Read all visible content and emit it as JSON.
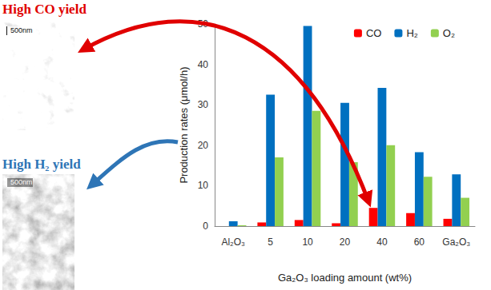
{
  "chart_data": {
    "type": "bar",
    "categories": [
      "Al₂O₃",
      "5",
      "10",
      "20",
      "40",
      "60",
      "Ga₂O₃"
    ],
    "x_label": "Ga₂O₃ loading amount (wt%)",
    "y_label": "Production rates (μmol/h)",
    "series": [
      {
        "name": "CO",
        "color": "#ff0000",
        "values": [
          0,
          0.9,
          1.5,
          0.7,
          4.5,
          3.2,
          1.8
        ]
      },
      {
        "name": "H₂",
        "color": "#0070c0",
        "values": [
          1.2,
          32.5,
          49.5,
          30.5,
          34.2,
          18.3,
          12.8
        ]
      },
      {
        "name": "O₂",
        "color": "#92d050",
        "values": [
          0.2,
          17,
          28.5,
          15.8,
          20,
          12.2,
          7
        ]
      }
    ],
    "ylim": [
      0,
      50
    ],
    "yticks": [
      0,
      10,
      20,
      30,
      40,
      50
    ],
    "grid": false,
    "legend": "top"
  },
  "panels": [
    {
      "title": "High CO yield",
      "color": "#e00000",
      "scale_bar": "500nm"
    },
    {
      "title": "High H₂ yield",
      "color": "#2e75b6",
      "scale_bar": "500nm"
    }
  ]
}
